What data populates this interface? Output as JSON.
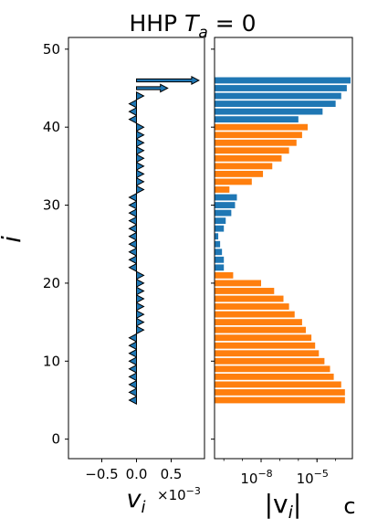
{
  "title_prefix": "HHP ",
  "title_symbol": "T",
  "title_sub": "a",
  "title_suffix": " = 0",
  "corner_label": "c",
  "chart_data": [
    {
      "type": "quiver",
      "ylabel": "i",
      "xlabel": "v",
      "xlabel_sub": "i",
      "x_multiplier_base": "×10",
      "x_multiplier_exp": "−3",
      "xlim": [
        -0.98,
        0.98
      ],
      "ylim": [
        -2.5,
        51.5
      ],
      "xticks": [
        -0.5,
        0.0,
        0.5
      ],
      "xtick_labels": [
        "−0.5",
        "0.0",
        "0.5"
      ],
      "yticks": [
        0,
        10,
        20,
        30,
        40,
        50
      ],
      "ytick_labels": [
        "0",
        "10",
        "20",
        "30",
        "40",
        "50"
      ],
      "units": "×10^-3",
      "i": [
        5,
        6,
        7,
        8,
        9,
        10,
        11,
        12,
        13,
        14,
        15,
        16,
        17,
        18,
        19,
        20,
        21,
        22,
        23,
        24,
        25,
        26,
        27,
        28,
        29,
        30,
        31,
        32,
        33,
        34,
        35,
        36,
        37,
        38,
        39,
        40,
        41,
        42,
        43,
        44,
        45,
        46
      ],
      "v_x1000": [
        -0.05,
        -0.04,
        -0.03,
        -0.025,
        -0.02,
        -0.015,
        -0.01,
        -0.005,
        -0.002,
        0,
        0,
        0,
        0,
        0,
        0,
        0,
        0,
        -0.1,
        -0.1,
        -0.1,
        -0.1,
        -0.1,
        -0.1,
        -0.1,
        -0.1,
        -0.1,
        -0.1,
        0,
        0,
        0,
        0,
        0,
        0,
        0,
        0,
        0,
        -0.1,
        -0.1,
        -0.05,
        0.05,
        0.45,
        0.9
      ]
    },
    {
      "type": "bar",
      "orientation": "horizontal",
      "xlabel": "|v",
      "xlabel_sub": "i",
      "xlabel_end": "|",
      "xscale": "log",
      "xlim_log10": [
        -10.5,
        -3.1
      ],
      "xticks_log10": [
        -8,
        -5
      ],
      "xtick_base": "10",
      "xtick_exps": [
        "−8",
        "−5"
      ],
      "ylim": [
        -2.5,
        51.5
      ],
      "bar_height": 0.8,
      "colors": {
        "blue": "#1f77b4",
        "orange": "#ff7f0e"
      },
      "bars": [
        {
          "i": 5,
          "log10": -3.5,
          "color": "orange"
        },
        {
          "i": 6,
          "log10": -3.5,
          "color": "orange"
        },
        {
          "i": 7,
          "log10": -3.7,
          "color": "orange"
        },
        {
          "i": 8,
          "log10": -4.1,
          "color": "orange"
        },
        {
          "i": 9,
          "log10": -4.3,
          "color": "orange"
        },
        {
          "i": 10,
          "log10": -4.6,
          "color": "orange"
        },
        {
          "i": 11,
          "log10": -4.9,
          "color": "orange"
        },
        {
          "i": 12,
          "log10": -5.1,
          "color": "orange"
        },
        {
          "i": 13,
          "log10": -5.3,
          "color": "orange"
        },
        {
          "i": 14,
          "log10": -5.6,
          "color": "orange"
        },
        {
          "i": 15,
          "log10": -5.8,
          "color": "orange"
        },
        {
          "i": 16,
          "log10": -6.2,
          "color": "orange"
        },
        {
          "i": 17,
          "log10": -6.5,
          "color": "orange"
        },
        {
          "i": 18,
          "log10": -6.8,
          "color": "orange"
        },
        {
          "i": 19,
          "log10": -7.3,
          "color": "orange"
        },
        {
          "i": 20,
          "log10": -8.0,
          "color": "orange"
        },
        {
          "i": 21,
          "log10": -9.5,
          "color": "orange"
        },
        {
          "i": 22,
          "log10": -10.0,
          "color": "blue"
        },
        {
          "i": 23,
          "log10": -10.0,
          "color": "blue"
        },
        {
          "i": 24,
          "log10": -10.1,
          "color": "blue"
        },
        {
          "i": 25,
          "log10": -10.2,
          "color": "blue"
        },
        {
          "i": 26,
          "log10": -10.3,
          "color": "blue"
        },
        {
          "i": 27,
          "log10": -10.0,
          "color": "blue"
        },
        {
          "i": 28,
          "log10": -9.9,
          "color": "blue"
        },
        {
          "i": 29,
          "log10": -9.6,
          "color": "blue"
        },
        {
          "i": 30,
          "log10": -9.4,
          "color": "blue"
        },
        {
          "i": 31,
          "log10": -9.3,
          "color": "blue"
        },
        {
          "i": 32,
          "log10": -9.7,
          "color": "orange"
        },
        {
          "i": 33,
          "log10": -8.5,
          "color": "orange"
        },
        {
          "i": 34,
          "log10": -7.9,
          "color": "orange"
        },
        {
          "i": 35,
          "log10": -7.4,
          "color": "orange"
        },
        {
          "i": 36,
          "log10": -6.9,
          "color": "orange"
        },
        {
          "i": 37,
          "log10": -6.5,
          "color": "orange"
        },
        {
          "i": 38,
          "log10": -6.1,
          "color": "orange"
        },
        {
          "i": 39,
          "log10": -5.8,
          "color": "orange"
        },
        {
          "i": 40,
          "log10": -5.5,
          "color": "orange"
        },
        {
          "i": 41,
          "log10": -6.0,
          "color": "blue"
        },
        {
          "i": 42,
          "log10": -4.7,
          "color": "blue"
        },
        {
          "i": 43,
          "log10": -4.0,
          "color": "blue"
        },
        {
          "i": 44,
          "log10": -3.7,
          "color": "blue"
        },
        {
          "i": 45,
          "log10": -3.4,
          "color": "blue"
        },
        {
          "i": 46,
          "log10": -3.2,
          "color": "blue"
        }
      ]
    }
  ]
}
